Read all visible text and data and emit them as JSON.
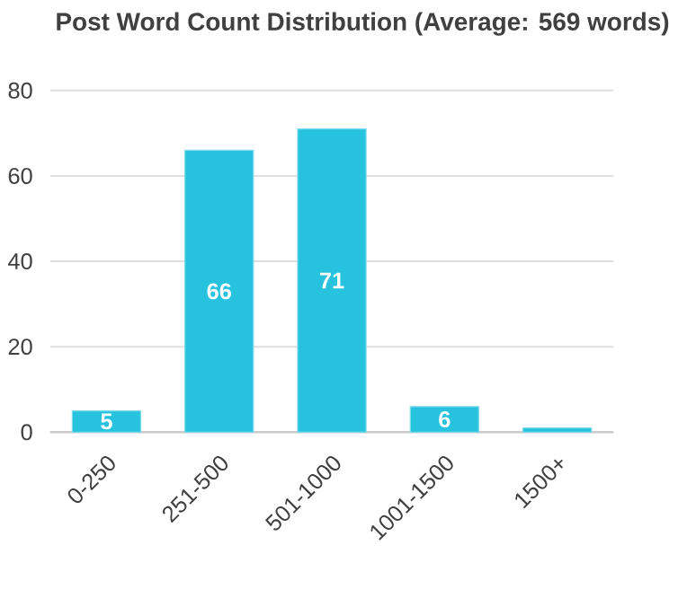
{
  "chart_data": {
    "type": "bar",
    "title": "Post Word Count Distribution (Average: 569 words)",
    "categories": [
      "0-250",
      "251-500",
      "501-1000",
      "1001-1500",
      "1500+"
    ],
    "values": [
      5,
      66,
      71,
      6,
      1
    ],
    "color": "#26c2de",
    "value_labels": [
      "5",
      "66",
      "71",
      "6",
      null
    ],
    "ylim": [
      0,
      80
    ],
    "yticks": [
      0,
      20,
      40,
      60,
      80
    ],
    "grid": "y"
  }
}
